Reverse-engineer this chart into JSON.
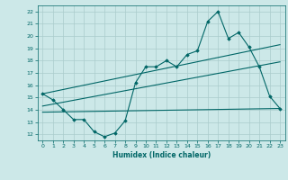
{
  "bg_color": "#cce8e8",
  "grid_color": "#aacccc",
  "line_color": "#006666",
  "xlabel": "Humidex (Indice chaleur)",
  "xlim": [
    -0.5,
    23.5
  ],
  "ylim": [
    11.5,
    22.5
  ],
  "xticks": [
    0,
    1,
    2,
    3,
    4,
    5,
    6,
    7,
    8,
    9,
    10,
    11,
    12,
    13,
    14,
    15,
    16,
    17,
    18,
    19,
    20,
    21,
    22,
    23
  ],
  "yticks": [
    12,
    13,
    14,
    15,
    16,
    17,
    18,
    19,
    20,
    21,
    22
  ],
  "zigzag_x": [
    0,
    1,
    2,
    3,
    4,
    5,
    6,
    7,
    8,
    9,
    10,
    11,
    12,
    13,
    14,
    15,
    16,
    17,
    18,
    19,
    20,
    21,
    22,
    23
  ],
  "zigzag_y": [
    15.3,
    14.8,
    14.0,
    13.2,
    13.2,
    12.2,
    11.8,
    12.1,
    13.1,
    16.2,
    17.5,
    17.5,
    18.0,
    17.5,
    18.5,
    18.8,
    21.2,
    22.0,
    19.8,
    20.3,
    19.1,
    17.5,
    15.1,
    14.1
  ],
  "upper_line_x": [
    0,
    23
  ],
  "upper_line_y": [
    15.3,
    19.3
  ],
  "mid_line_x": [
    0,
    23
  ],
  "mid_line_y": [
    14.3,
    17.9
  ],
  "lower_line_x": [
    0,
    23
  ],
  "lower_line_y": [
    13.8,
    14.1
  ]
}
